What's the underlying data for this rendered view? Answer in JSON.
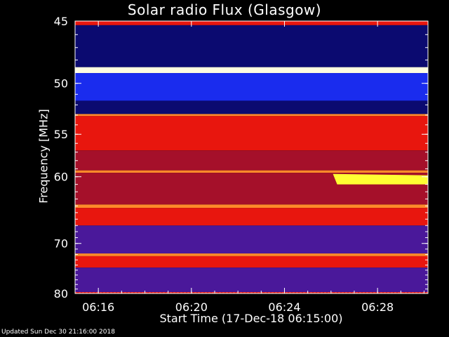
{
  "chart_data": {
    "type": "heatmap",
    "title": "Solar radio Flux (Glasgow)",
    "ylabel": "Frequency [MHz]",
    "xlabel": "Start Time (17-Dec-18 06:15:00)",
    "x_start": "06:15:00",
    "x_end": "06:30:10",
    "x_ticks": [
      "06:16",
      "06:20",
      "06:24",
      "06:28"
    ],
    "x_tick_minutes": [
      16,
      20,
      24,
      28
    ],
    "y_ticks": [
      45,
      50,
      55,
      60,
      70,
      80
    ],
    "ylim": [
      45,
      80
    ],
    "y_scale": "reciprocal",
    "grid": false,
    "intensity_bands_mhz": [
      {
        "from": 45.0,
        "to": 45.3,
        "level": "red"
      },
      {
        "from": 45.3,
        "to": 48.6,
        "level": "dark-blue"
      },
      {
        "from": 48.6,
        "to": 49.1,
        "level": "white"
      },
      {
        "from": 49.1,
        "to": 51.6,
        "level": "blue"
      },
      {
        "from": 51.6,
        "to": 52.9,
        "level": "dark-blue"
      },
      {
        "from": 52.9,
        "to": 53.1,
        "level": "orange"
      },
      {
        "from": 53.1,
        "to": 56.8,
        "level": "red"
      },
      {
        "from": 56.8,
        "to": 59.2,
        "level": "dark-red"
      },
      {
        "from": 59.2,
        "to": 59.5,
        "level": "orange"
      },
      {
        "from": 59.5,
        "to": 63.8,
        "level": "dark-red"
      },
      {
        "from": 63.8,
        "to": 64.3,
        "level": "orange"
      },
      {
        "from": 64.3,
        "to": 67.0,
        "level": "red"
      },
      {
        "from": 67.0,
        "to": 71.8,
        "level": "purple"
      },
      {
        "from": 71.8,
        "to": 72.3,
        "level": "orange"
      },
      {
        "from": 72.3,
        "to": 74.5,
        "level": "red"
      },
      {
        "from": 74.5,
        "to": 79.7,
        "level": "purple"
      },
      {
        "from": 79.7,
        "to": 80.0,
        "level": "red-dotted"
      }
    ],
    "features": [
      {
        "type": "burst",
        "start_time": "06:26:05",
        "end_time": "06:30:10",
        "freq_mhz_start": 60.0,
        "freq_mhz_end": 61.0,
        "level": "yellow"
      }
    ],
    "colors": {
      "background": "#000000",
      "white": "#fffde0",
      "yellow": "#ffff33",
      "orange": "#ff8a2a",
      "red": "#e8160e",
      "dark-red": "#a5102a",
      "purple": "#4a189a",
      "blue": "#1a2cee",
      "dark-blue": "#0b0a70"
    }
  },
  "footer": "Updated Sun Dec 30 21:16:00 2018"
}
